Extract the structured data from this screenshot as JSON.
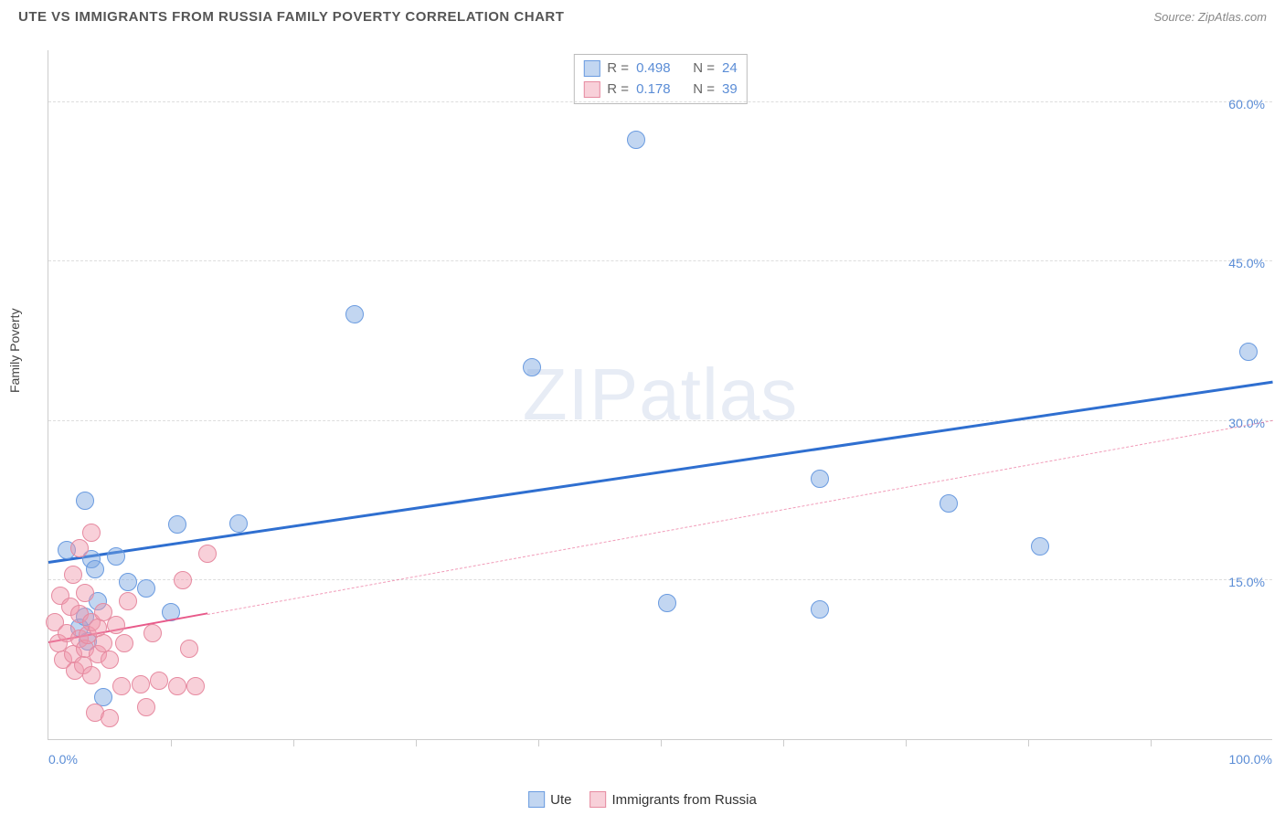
{
  "header": {
    "title": "UTE VS IMMIGRANTS FROM RUSSIA FAMILY POVERTY CORRELATION CHART",
    "source_label": "Source: ZipAtlas.com"
  },
  "watermark": {
    "zip": "ZIP",
    "atlas": "atlas"
  },
  "chart": {
    "type": "scatter",
    "ylabel": "Family Poverty",
    "xlim": [
      0,
      100
    ],
    "ylim": [
      0,
      65
    ],
    "yticks": [
      {
        "value": 15,
        "label": "15.0%"
      },
      {
        "value": 30,
        "label": "30.0%"
      },
      {
        "value": 45,
        "label": "45.0%"
      },
      {
        "value": 60,
        "label": "60.0%"
      }
    ],
    "xticks": [
      10,
      20,
      30,
      40,
      50,
      60,
      70,
      80,
      90
    ],
    "xtick_labels": {
      "min": "0.0%",
      "max": "100.0%"
    },
    "background_color": "#ffffff",
    "grid_color": "#dddddd",
    "axis_color": "#cccccc",
    "tick_label_color": "#5b8dd6",
    "series": [
      {
        "name": "Ute",
        "color_fill": "rgba(120, 165, 225, 0.45)",
        "color_stroke": "#6a9be0",
        "marker_radius": 10,
        "r_value": "0.498",
        "n_value": "24",
        "trendline": {
          "color": "#2f6fd0",
          "width": 3,
          "style": "solid",
          "x1": 0,
          "y1": 16.5,
          "x2": 100,
          "y2": 33.5
        },
        "points": [
          {
            "x": 1.5,
            "y": 17.8
          },
          {
            "x": 3.0,
            "y": 22.5
          },
          {
            "x": 3.2,
            "y": 9.2
          },
          {
            "x": 3.5,
            "y": 17.0
          },
          {
            "x": 4.0,
            "y": 13.0
          },
          {
            "x": 5.5,
            "y": 17.2
          },
          {
            "x": 4.5,
            "y": 4.0
          },
          {
            "x": 6.5,
            "y": 14.8
          },
          {
            "x": 8.0,
            "y": 14.2
          },
          {
            "x": 10.5,
            "y": 20.2
          },
          {
            "x": 10.0,
            "y": 12.0
          },
          {
            "x": 15.5,
            "y": 20.3
          },
          {
            "x": 25.0,
            "y": 40.0
          },
          {
            "x": 39.5,
            "y": 35.0
          },
          {
            "x": 48.0,
            "y": 56.5
          },
          {
            "x": 50.5,
            "y": 12.8
          },
          {
            "x": 63.0,
            "y": 12.2
          },
          {
            "x": 63.0,
            "y": 24.5
          },
          {
            "x": 73.5,
            "y": 22.2
          },
          {
            "x": 81.0,
            "y": 18.2
          },
          {
            "x": 98.0,
            "y": 36.5
          },
          {
            "x": 2.5,
            "y": 10.5
          },
          {
            "x": 3.8,
            "y": 16.0
          },
          {
            "x": 3.0,
            "y": 11.5
          }
        ]
      },
      {
        "name": "Immigrants from Russia",
        "color_fill": "rgba(240, 150, 170, 0.45)",
        "color_stroke": "#e68aa0",
        "marker_radius": 10,
        "r_value": "0.178",
        "n_value": "39",
        "trendline": {
          "color": "#e85a8a",
          "width": 2,
          "style": "solid_then_dashed",
          "solid_end_x": 13,
          "x1": 0,
          "y1": 9.0,
          "x2": 100,
          "y2": 30.0
        },
        "points": [
          {
            "x": 0.5,
            "y": 11.0
          },
          {
            "x": 0.8,
            "y": 9.0
          },
          {
            "x": 1.0,
            "y": 13.5
          },
          {
            "x": 1.2,
            "y": 7.5
          },
          {
            "x": 1.5,
            "y": 10.0
          },
          {
            "x": 1.8,
            "y": 12.5
          },
          {
            "x": 2.0,
            "y": 8.0
          },
          {
            "x": 2.0,
            "y": 15.5
          },
          {
            "x": 2.2,
            "y": 6.5
          },
          {
            "x": 2.5,
            "y": 9.5
          },
          {
            "x": 2.5,
            "y": 11.8
          },
          {
            "x": 2.5,
            "y": 18.0
          },
          {
            "x": 2.8,
            "y": 7.0
          },
          {
            "x": 3.0,
            "y": 13.8
          },
          {
            "x": 3.0,
            "y": 8.5
          },
          {
            "x": 3.2,
            "y": 9.8
          },
          {
            "x": 3.5,
            "y": 11.0
          },
          {
            "x": 3.5,
            "y": 6.0
          },
          {
            "x": 3.5,
            "y": 19.5
          },
          {
            "x": 3.8,
            "y": 2.5
          },
          {
            "x": 4.0,
            "y": 10.5
          },
          {
            "x": 4.0,
            "y": 8.0
          },
          {
            "x": 4.5,
            "y": 12.0
          },
          {
            "x": 4.5,
            "y": 9.0
          },
          {
            "x": 5.0,
            "y": 7.5
          },
          {
            "x": 5.0,
            "y": 2.0
          },
          {
            "x": 5.5,
            "y": 10.8
          },
          {
            "x": 6.0,
            "y": 5.0
          },
          {
            "x": 6.2,
            "y": 9.0
          },
          {
            "x": 6.5,
            "y": 13.0
          },
          {
            "x": 7.5,
            "y": 5.2
          },
          {
            "x": 8.0,
            "y": 3.0
          },
          {
            "x": 8.5,
            "y": 10.0
          },
          {
            "x": 9.0,
            "y": 5.5
          },
          {
            "x": 10.5,
            "y": 5.0
          },
          {
            "x": 11.0,
            "y": 15.0
          },
          {
            "x": 12.0,
            "y": 5.0
          },
          {
            "x": 13.0,
            "y": 17.5
          },
          {
            "x": 11.5,
            "y": 8.5
          }
        ]
      }
    ],
    "legend_bottom": [
      {
        "label": "Ute",
        "fill": "rgba(120, 165, 225, 0.45)",
        "stroke": "#6a9be0"
      },
      {
        "label": "Immigrants from Russia",
        "fill": "rgba(240, 150, 170, 0.45)",
        "stroke": "#e68aa0"
      }
    ]
  }
}
